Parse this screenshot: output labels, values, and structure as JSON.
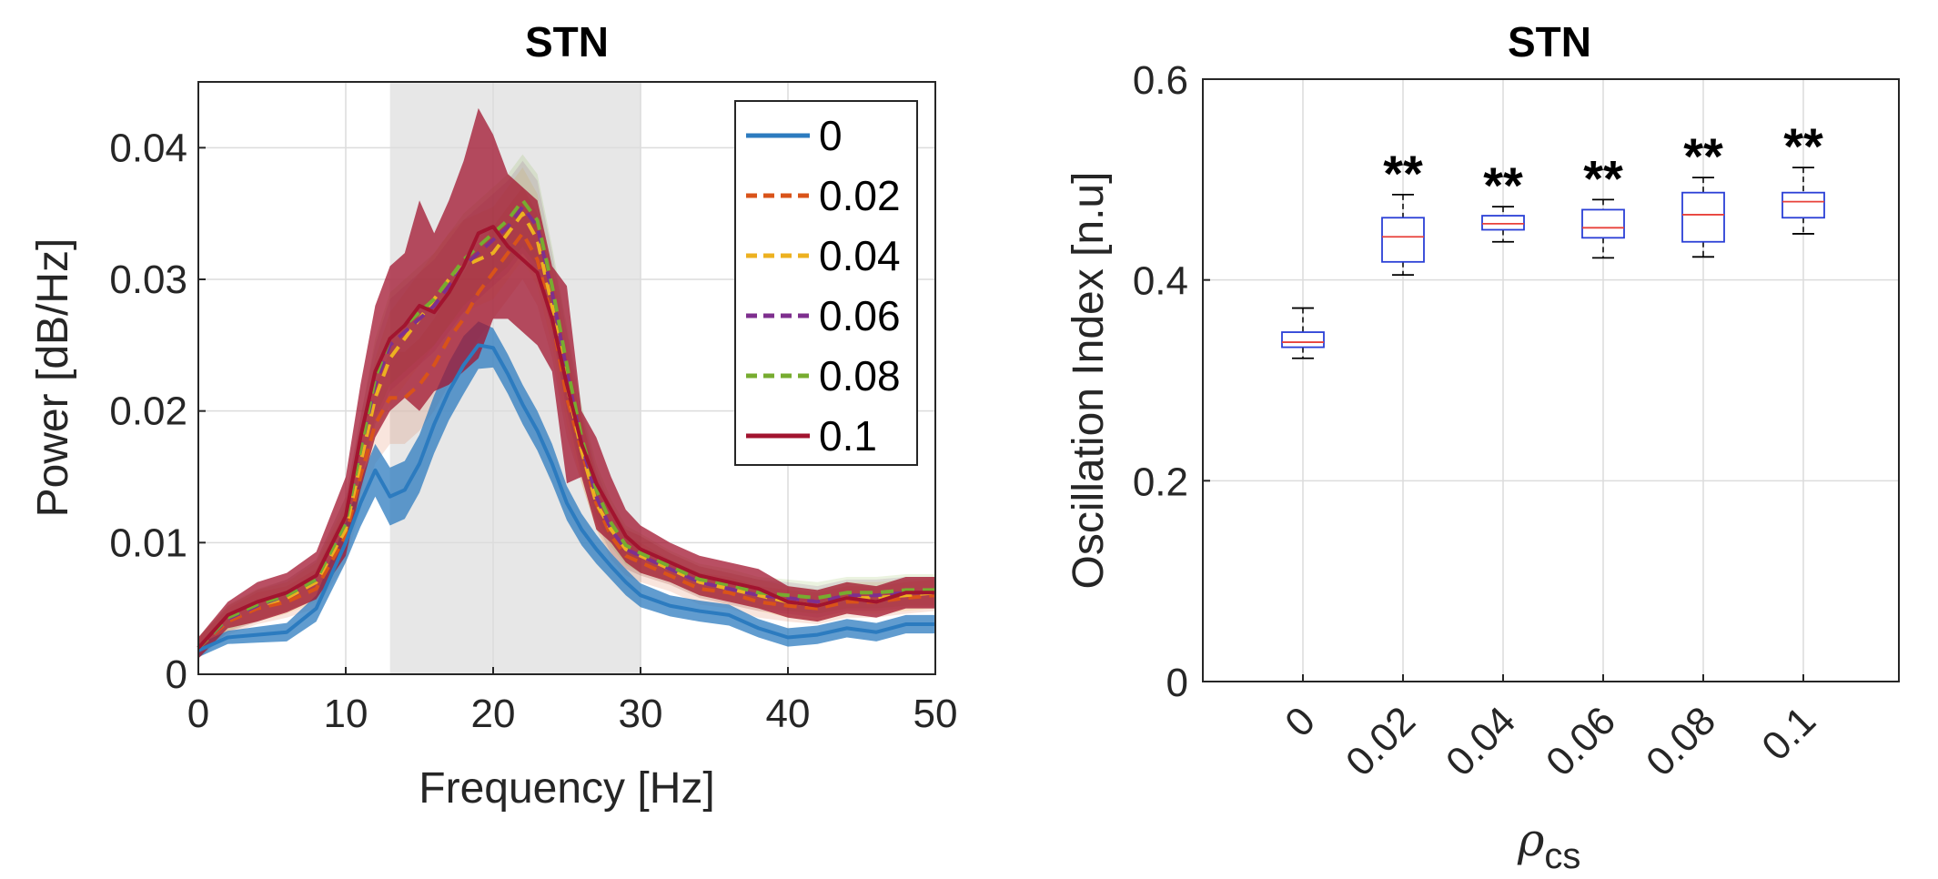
{
  "chart_data": [
    {
      "type": "line",
      "title": "STN",
      "xlabel": "Frequency [Hz]",
      "ylabel": "Power [dB/Hz]",
      "xlim": [
        0,
        50
      ],
      "ylim": [
        0,
        0.045
      ],
      "xticks": [
        0,
        10,
        20,
        30,
        40,
        50
      ],
      "xtick_labels": [
        "0",
        "10",
        "20",
        "30",
        "40",
        "50"
      ],
      "yticks": [
        0,
        0.01,
        0.02,
        0.03,
        0.04
      ],
      "ytick_labels": [
        "0",
        "0.01",
        "0.02",
        "0.03",
        "0.04"
      ],
      "grid": true,
      "legend_position": "top-right",
      "shaded_band": {
        "x_start": 13,
        "x_end": 30,
        "color": "#e6e6e6"
      },
      "x": [
        0,
        2,
        4,
        6,
        8,
        10,
        11,
        12,
        13,
        14,
        15,
        16,
        17,
        18,
        19,
        20,
        21,
        22,
        23,
        24,
        25,
        26,
        27,
        28,
        29,
        30,
        32,
        34,
        36,
        38,
        40,
        42,
        44,
        46,
        48,
        50
      ],
      "series": [
        {
          "name": "0",
          "color": "#2c7bbf",
          "style": "solid",
          "values": [
            0.0018,
            0.0028,
            0.003,
            0.0032,
            0.005,
            0.01,
            0.013,
            0.0155,
            0.0135,
            0.014,
            0.016,
            0.019,
            0.0215,
            0.0235,
            0.025,
            0.0248,
            0.0228,
            0.0205,
            0.0185,
            0.016,
            0.013,
            0.011,
            0.0095,
            0.0082,
            0.007,
            0.006,
            0.0052,
            0.0048,
            0.0045,
            0.0035,
            0.0028,
            0.003,
            0.0035,
            0.0032,
            0.0038,
            0.0038
          ],
          "band": [
            0.0005,
            0.0005,
            0.0006,
            0.0007,
            0.001,
            0.0015,
            0.0018,
            0.002,
            0.0022,
            0.0022,
            0.0022,
            0.0022,
            0.0022,
            0.0022,
            0.0018,
            0.0015,
            0.0015,
            0.0015,
            0.0015,
            0.0015,
            0.0013,
            0.0012,
            0.0011,
            0.001,
            0.001,
            0.0009,
            0.0008,
            0.0008,
            0.0008,
            0.0007,
            0.0007,
            0.0007,
            0.0007,
            0.0007,
            0.0007,
            0.0007
          ]
        },
        {
          "name": "0.02",
          "color": "#d95319",
          "style": "dashed",
          "values": [
            0.002,
            0.004,
            0.005,
            0.0055,
            0.0065,
            0.0105,
            0.015,
            0.019,
            0.021,
            0.021,
            0.022,
            0.0235,
            0.0255,
            0.027,
            0.029,
            0.0305,
            0.032,
            0.0335,
            0.0315,
            0.027,
            0.021,
            0.017,
            0.013,
            0.0105,
            0.009,
            0.0085,
            0.0075,
            0.0065,
            0.0062,
            0.0055,
            0.0052,
            0.005,
            0.0055,
            0.0055,
            0.0058,
            0.006
          ],
          "band": [
            0.0008,
            0.001,
            0.0012,
            0.0012,
            0.0015,
            0.002,
            0.0025,
            0.003,
            0.0035,
            0.0035,
            0.0035,
            0.0035,
            0.0035,
            0.0035,
            0.0035,
            0.0035,
            0.0035,
            0.0035,
            0.0035,
            0.003,
            0.003,
            0.0025,
            0.002,
            0.0018,
            0.0015,
            0.0015,
            0.0012,
            0.0012,
            0.0012,
            0.0012,
            0.0012,
            0.0012,
            0.0012,
            0.0012,
            0.0012,
            0.0012
          ]
        },
        {
          "name": "0.04",
          "color": "#edb120",
          "style": "dashed",
          "values": [
            0.002,
            0.0042,
            0.0052,
            0.0058,
            0.007,
            0.011,
            0.016,
            0.021,
            0.024,
            0.0255,
            0.027,
            0.0285,
            0.03,
            0.031,
            0.0315,
            0.032,
            0.0335,
            0.035,
            0.033,
            0.028,
            0.022,
            0.017,
            0.013,
            0.011,
            0.0095,
            0.009,
            0.008,
            0.007,
            0.0065,
            0.006,
            0.0055,
            0.0052,
            0.0058,
            0.0058,
            0.006,
            0.0062
          ],
          "band": [
            0.0008,
            0.001,
            0.0012,
            0.0012,
            0.0015,
            0.002,
            0.0025,
            0.003,
            0.0035,
            0.0035,
            0.0035,
            0.0035,
            0.0035,
            0.0035,
            0.0035,
            0.0035,
            0.0035,
            0.0035,
            0.0035,
            0.003,
            0.003,
            0.0025,
            0.002,
            0.0018,
            0.0015,
            0.0015,
            0.0012,
            0.0012,
            0.0012,
            0.0012,
            0.0012,
            0.0012,
            0.0012,
            0.0012,
            0.0012,
            0.0012
          ]
        },
        {
          "name": "0.06",
          "color": "#7e2f8e",
          "style": "dashed",
          "values": [
            0.002,
            0.0042,
            0.0052,
            0.006,
            0.0072,
            0.0115,
            0.017,
            0.022,
            0.025,
            0.026,
            0.027,
            0.028,
            0.0295,
            0.031,
            0.032,
            0.033,
            0.034,
            0.0355,
            0.034,
            0.029,
            0.023,
            0.0175,
            0.0135,
            0.011,
            0.0095,
            0.009,
            0.008,
            0.007,
            0.0065,
            0.006,
            0.0058,
            0.0055,
            0.006,
            0.006,
            0.0062,
            0.0062
          ],
          "band": [
            0.0008,
            0.001,
            0.0012,
            0.0012,
            0.0015,
            0.002,
            0.0025,
            0.003,
            0.0035,
            0.0035,
            0.0035,
            0.0035,
            0.0035,
            0.0035,
            0.0035,
            0.0035,
            0.0035,
            0.0035,
            0.0035,
            0.003,
            0.003,
            0.0025,
            0.002,
            0.0018,
            0.0015,
            0.0015,
            0.0012,
            0.0012,
            0.0012,
            0.0012,
            0.0012,
            0.0012,
            0.0012,
            0.0012,
            0.0012,
            0.0012
          ]
        },
        {
          "name": "0.08",
          "color": "#77ac30",
          "style": "dashed",
          "values": [
            0.002,
            0.0043,
            0.0053,
            0.006,
            0.0072,
            0.0115,
            0.017,
            0.0225,
            0.0255,
            0.0265,
            0.0275,
            0.0285,
            0.03,
            0.0315,
            0.0325,
            0.0335,
            0.0345,
            0.036,
            0.0345,
            0.0295,
            0.0235,
            0.018,
            0.014,
            0.0115,
            0.0098,
            0.0092,
            0.0082,
            0.0072,
            0.0068,
            0.0062,
            0.006,
            0.0058,
            0.0062,
            0.0062,
            0.0064,
            0.0064
          ],
          "band": [
            0.0008,
            0.001,
            0.0012,
            0.0012,
            0.0015,
            0.002,
            0.0025,
            0.003,
            0.0035,
            0.0035,
            0.0035,
            0.0035,
            0.0035,
            0.0035,
            0.0035,
            0.0035,
            0.0035,
            0.0035,
            0.0035,
            0.003,
            0.003,
            0.0025,
            0.002,
            0.0018,
            0.0015,
            0.0015,
            0.0012,
            0.0012,
            0.0012,
            0.0012,
            0.0012,
            0.0012,
            0.0012,
            0.0012,
            0.0012,
            0.0012
          ]
        },
        {
          "name": "0.1",
          "color": "#a2142f",
          "style": "solid",
          "values": [
            0.002,
            0.0045,
            0.0055,
            0.0062,
            0.0075,
            0.012,
            0.018,
            0.023,
            0.0255,
            0.0265,
            0.028,
            0.0275,
            0.029,
            0.031,
            0.0335,
            0.034,
            0.0325,
            0.0315,
            0.0305,
            0.027,
            0.022,
            0.0175,
            0.0145,
            0.0125,
            0.0105,
            0.0095,
            0.0085,
            0.0075,
            0.007,
            0.0065,
            0.0055,
            0.0052,
            0.0058,
            0.0055,
            0.0062,
            0.0062
          ],
          "band": [
            0.0008,
            0.001,
            0.0015,
            0.0015,
            0.0018,
            0.003,
            0.004,
            0.005,
            0.0055,
            0.0055,
            0.008,
            0.006,
            0.007,
            0.008,
            0.0095,
            0.007,
            0.0055,
            0.0055,
            0.0055,
            0.004,
            0.0075,
            0.0025,
            0.0035,
            0.0025,
            0.002,
            0.0018,
            0.0015,
            0.0015,
            0.0015,
            0.0015,
            0.0012,
            0.0012,
            0.0012,
            0.0012,
            0.0012,
            0.0012
          ]
        }
      ]
    },
    {
      "type": "box",
      "title": "STN",
      "xlabel_symbol": "ρ",
      "xlabel_subscript": "cs",
      "ylabel": "Oscillation Index [n.u]",
      "ylim": [
        0,
        0.6
      ],
      "yticks": [
        0,
        0.2,
        0.4,
        0.6
      ],
      "ytick_labels": [
        "0",
        "0.2",
        "0.4",
        "0.6"
      ],
      "grid": true,
      "box_color": "#2a3fd6",
      "median_color": "#e8413a",
      "whisker_color": "#000000",
      "categories": [
        "0",
        "0.02",
        "0.04",
        "0.06",
        "0.08",
        "0.1"
      ],
      "boxes": [
        {
          "label": "0",
          "min": 0.322,
          "q1": 0.333,
          "median": 0.338,
          "q3": 0.348,
          "max": 0.372,
          "annotation": ""
        },
        {
          "label": "0.02",
          "min": 0.405,
          "q1": 0.418,
          "median": 0.443,
          "q3": 0.462,
          "max": 0.485,
          "annotation": "**"
        },
        {
          "label": "0.04",
          "min": 0.438,
          "q1": 0.45,
          "median": 0.456,
          "q3": 0.464,
          "max": 0.473,
          "annotation": "**"
        },
        {
          "label": "0.06",
          "min": 0.422,
          "q1": 0.442,
          "median": 0.452,
          "q3": 0.47,
          "max": 0.48,
          "annotation": "**"
        },
        {
          "label": "0.08",
          "min": 0.423,
          "q1": 0.438,
          "median": 0.465,
          "q3": 0.487,
          "max": 0.502,
          "annotation": "**"
        },
        {
          "label": "0.1",
          "min": 0.446,
          "q1": 0.462,
          "median": 0.478,
          "q3": 0.487,
          "max": 0.512,
          "annotation": "**"
        }
      ]
    }
  ]
}
